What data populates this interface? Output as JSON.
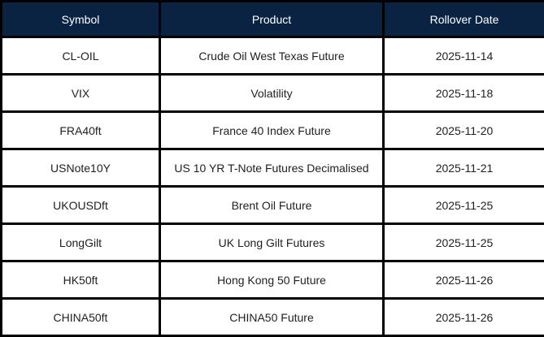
{
  "colors": {
    "header_bg": "#0a2342",
    "header_text": "#ffffff",
    "body_text": "#1f1f1f",
    "border": "#000000",
    "row_bg": "#ffffff"
  },
  "table": {
    "headers": {
      "symbol": "Symbol",
      "product": "Product",
      "rollover_date": "Rollover Date"
    },
    "rows": [
      {
        "symbol": "CL-OIL",
        "product": "Crude Oil West Texas Future",
        "rollover_date": "2025-11-14"
      },
      {
        "symbol": "VIX",
        "product": "Volatility",
        "rollover_date": "2025-11-18"
      },
      {
        "symbol": "FRA40ft",
        "product": "France 40 Index Future",
        "rollover_date": "2025-11-20"
      },
      {
        "symbol": "USNote10Y",
        "product": "US 10 YR T-Note Futures Decimalised",
        "rollover_date": "2025-11-21"
      },
      {
        "symbol": "UKOUSDft",
        "product": "Brent Oil Future",
        "rollover_date": "2025-11-25"
      },
      {
        "symbol": "LongGilt",
        "product": "UK Long Gilt Futures",
        "rollover_date": "2025-11-25"
      },
      {
        "symbol": "HK50ft",
        "product": "Hong Kong 50 Future",
        "rollover_date": "2025-11-26"
      },
      {
        "symbol": "CHINA50ft",
        "product": "CHINA50 Future",
        "rollover_date": "2025-11-26"
      }
    ]
  },
  "chart_data": {
    "type": "table",
    "columns": [
      "Symbol",
      "Product",
      "Rollover Date"
    ],
    "rows": [
      [
        "CL-OIL",
        "Crude Oil West Texas Future",
        "2025-11-14"
      ],
      [
        "VIX",
        "Volatility",
        "2025-11-18"
      ],
      [
        "FRA40ft",
        "France 40 Index Future",
        "2025-11-20"
      ],
      [
        "USNote10Y",
        "US 10 YR T-Note Futures Decimalised",
        "2025-11-21"
      ],
      [
        "UKOUSDft",
        "Brent Oil Future",
        "2025-11-25"
      ],
      [
        "LongGilt",
        "UK Long Gilt Futures",
        "2025-11-25"
      ],
      [
        "HK50ft",
        "Hong Kong 50 Future",
        "2025-11-26"
      ],
      [
        "CHINA50ft",
        "CHINA50 Future",
        "2025-11-26"
      ]
    ]
  }
}
